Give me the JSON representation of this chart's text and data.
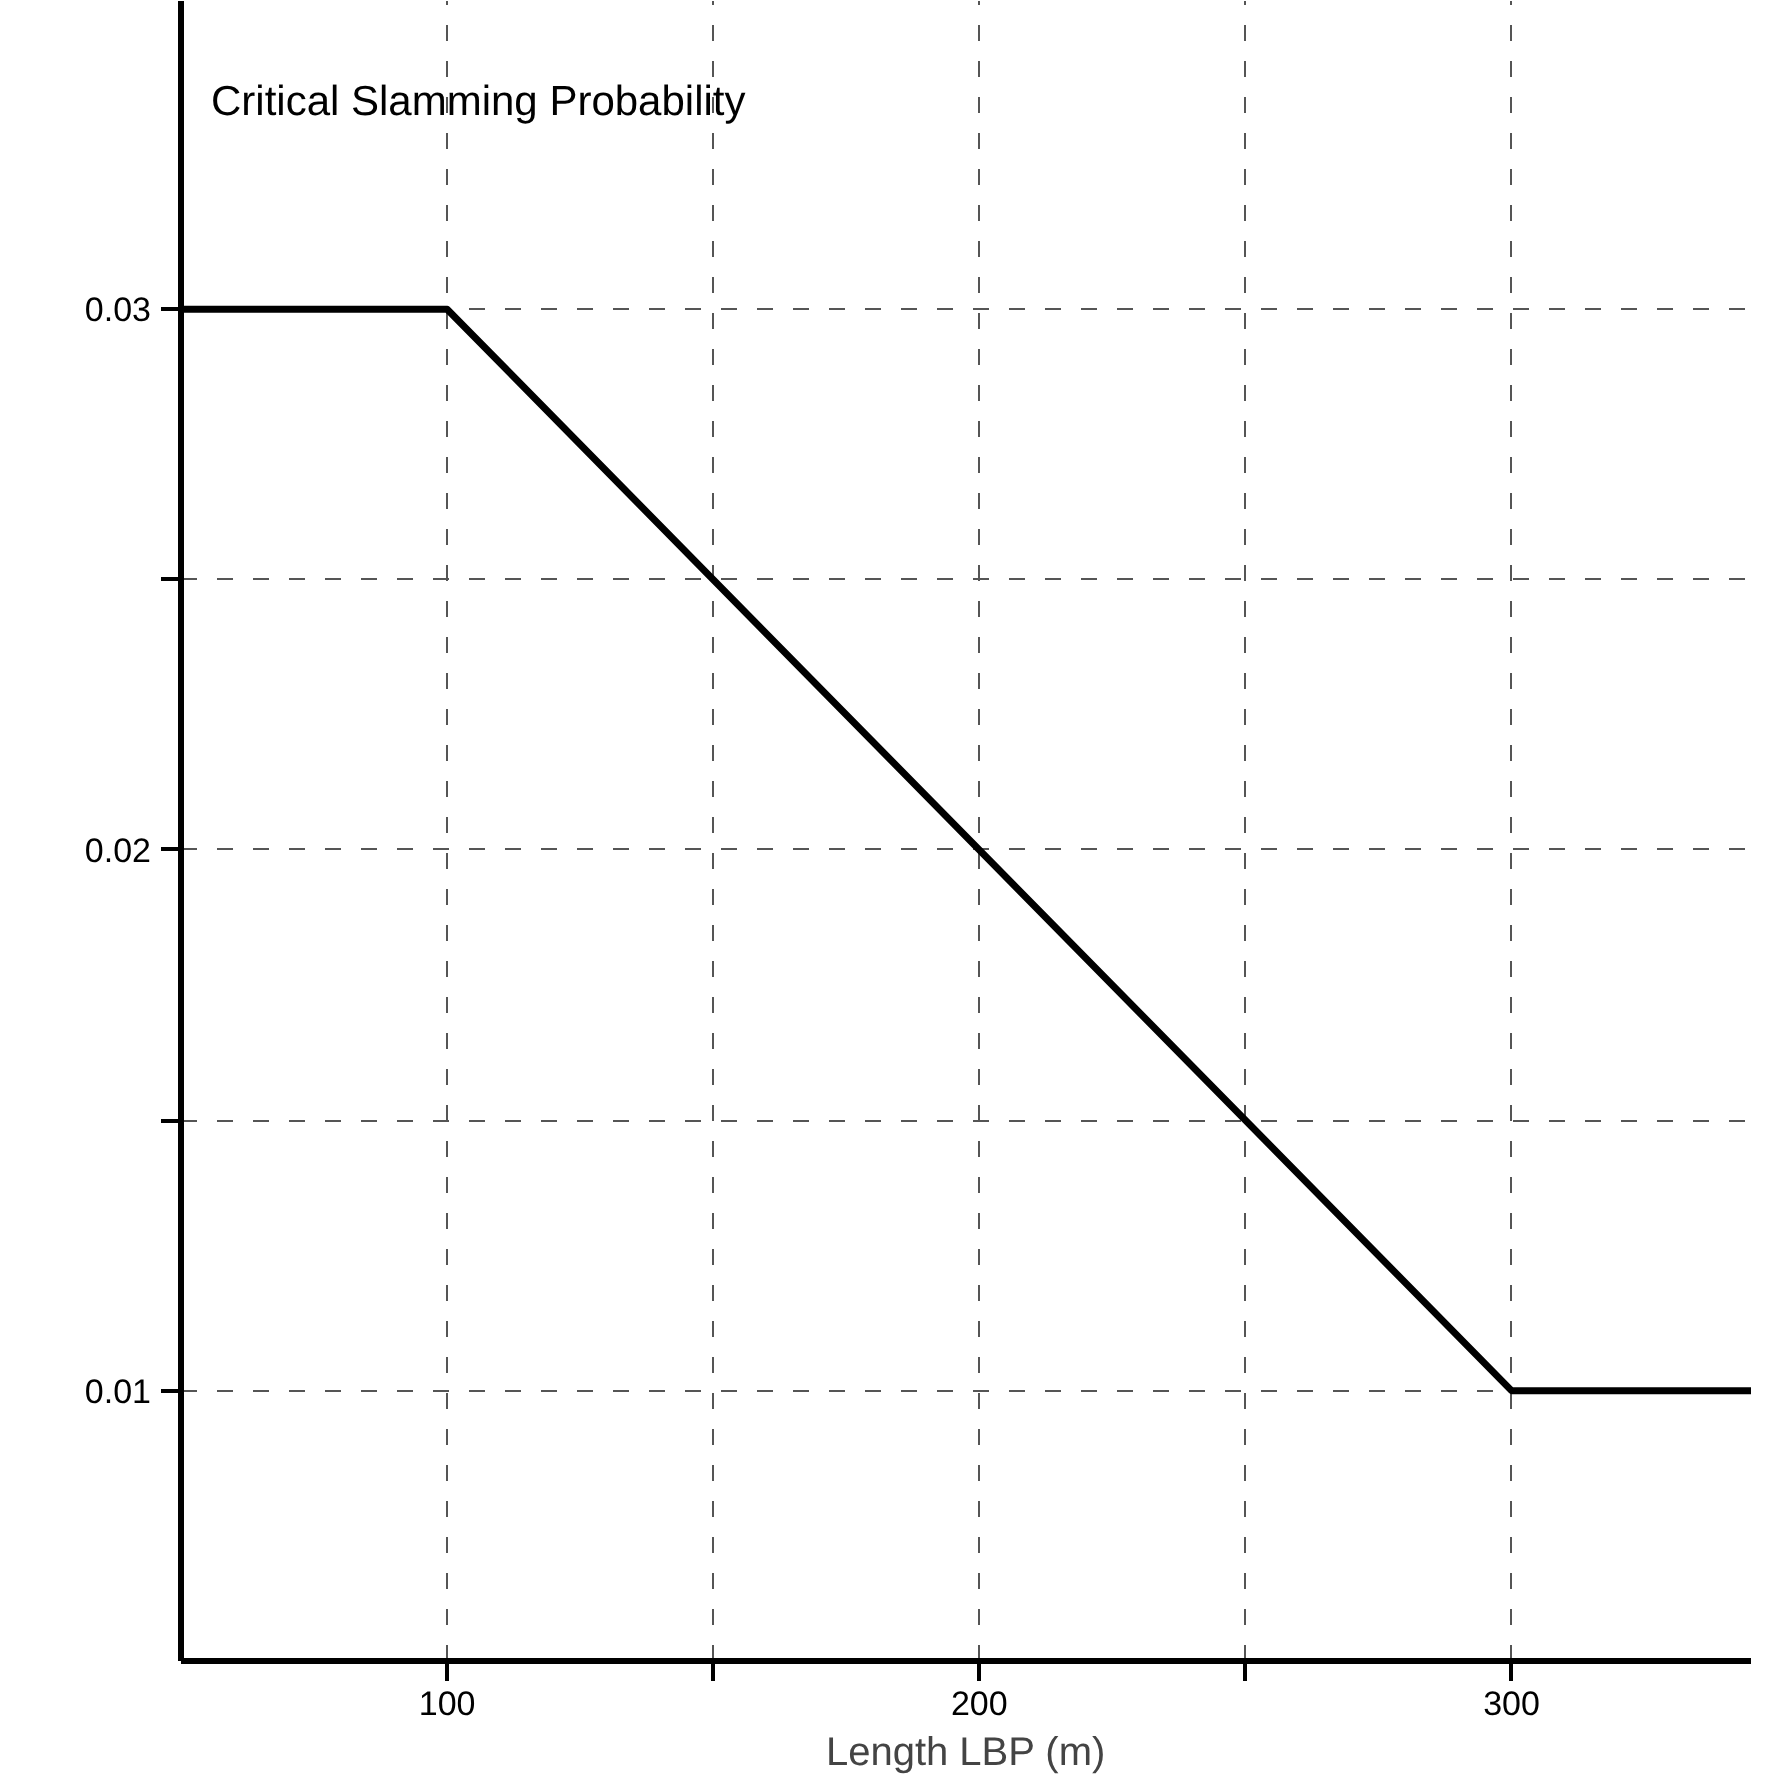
{
  "chart_data": {
    "type": "line",
    "title": "Critical Slamming Probability",
    "xlabel": "Length LBP (m)",
    "x": [
      50,
      100,
      300,
      345
    ],
    "series": [
      {
        "color": "#000000",
        "values": [
          0.03,
          0.03,
          0.01,
          0.01
        ]
      }
    ],
    "xlim": [
      50,
      345
    ],
    "ylim": [
      0.005,
      0.0357
    ],
    "xticks": [
      100,
      {
        "value": 150,
        "label": null
      },
      200,
      {
        "value": 250,
        "label": null
      },
      300
    ],
    "yticks": [
      0.01,
      {
        "value": 0.015,
        "label": null
      },
      0.02,
      {
        "value": 0.025,
        "label": null
      },
      0.03
    ],
    "grid": true,
    "line_style": "solid",
    "marker": "none"
  }
}
